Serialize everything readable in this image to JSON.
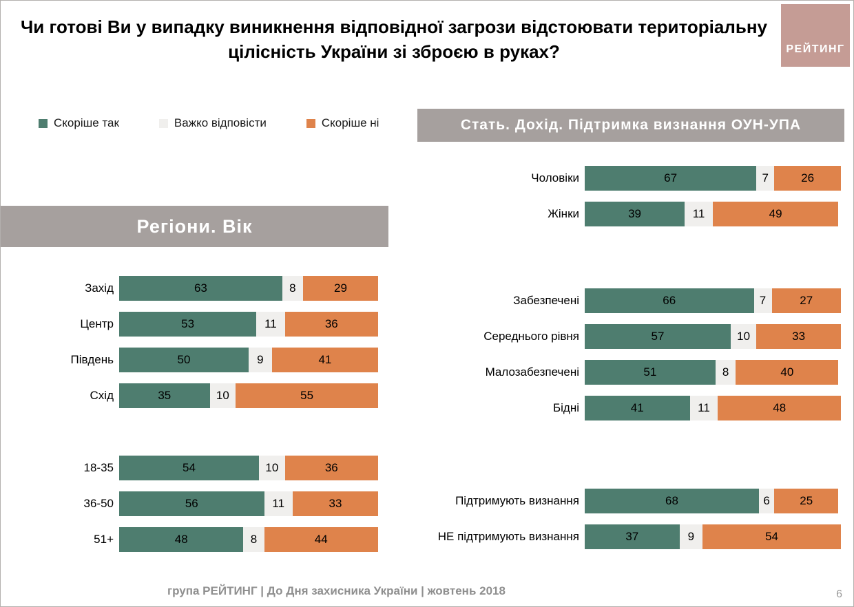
{
  "title": "Чи готові Ви у випадку виникнення відповідної загрози відстоювати територіальну цілісність України зі зброєю в руках?",
  "logo": {
    "text": "РЕЙТИНГ",
    "background": "#c59c95"
  },
  "colors": {
    "header_bar": "#a6a09e",
    "rather_yes": "#4e7d6f",
    "hard_to_answer": "#f0efed",
    "rather_no": "#df834b"
  },
  "legend": [
    {
      "key": "rather-yes",
      "label": "Скоріше так",
      "color": "#4e7d6f"
    },
    {
      "key": "hard-to-answer",
      "label": "Важко відповісти",
      "color": "#f0efed"
    },
    {
      "key": "rather-no",
      "label": "Скоріше ні",
      "color": "#df834b"
    }
  ],
  "footer": {
    "text": "група РЕЙТИНГ  |  До Дня захисника України |  жовтень  2018",
    "page": "6"
  },
  "chart_data": [
    {
      "type": "bar",
      "orientation": "horizontal",
      "stacked": true,
      "units": "%",
      "xlim": [
        0,
        100
      ],
      "title": "Регіони. Вік",
      "series_names": [
        "Скоріше так",
        "Важко відповісти",
        "Скоріше ні"
      ],
      "groups": [
        {
          "name": "regions",
          "rows": [
            {
              "label": "Захід",
              "values": [
                63,
                8,
                29
              ]
            },
            {
              "label": "Центр",
              "values": [
                53,
                11,
                36
              ]
            },
            {
              "label": "Південь",
              "values": [
                50,
                9,
                41
              ]
            },
            {
              "label": "Схід",
              "values": [
                35,
                10,
                55
              ]
            }
          ]
        },
        {
          "name": "age",
          "gap_before": 53,
          "rows": [
            {
              "label": "18-35",
              "values": [
                54,
                10,
                36
              ]
            },
            {
              "label": "36-50",
              "values": [
                56,
                11,
                33
              ]
            },
            {
              "label": "51+",
              "values": [
                48,
                8,
                44
              ]
            }
          ]
        }
      ]
    },
    {
      "type": "bar",
      "orientation": "horizontal",
      "stacked": true,
      "units": "%",
      "xlim": [
        0,
        100
      ],
      "title": "Стать. Дохід. Підтримка визнання ОУН-УПА",
      "series_names": [
        "Скоріше так",
        "Важко відповісти",
        "Скоріше ні"
      ],
      "groups": [
        {
          "name": "gender",
          "rows": [
            {
              "label": "Чоловіки",
              "values": [
                67,
                7,
                26
              ]
            },
            {
              "label": "Жінки",
              "values": [
                39,
                11,
                49
              ]
            }
          ]
        },
        {
          "name": "income",
          "gap_before": 74,
          "rows": [
            {
              "label": "Забезпечені",
              "values": [
                66,
                7,
                27
              ]
            },
            {
              "label": "Середнього рівня",
              "values": [
                57,
                10,
                33
              ]
            },
            {
              "label": "Малозабезпечені",
              "values": [
                51,
                8,
                40
              ]
            },
            {
              "label": "Бідні",
              "values": [
                41,
                11,
                48
              ]
            }
          ]
        },
        {
          "name": "oun-upa-recognition",
          "gap_before": 83,
          "rows": [
            {
              "label": "Підтримують визнання",
              "values": [
                68,
                6,
                25
              ]
            },
            {
              "label": "НЕ підтримують визнання",
              "values": [
                37,
                9,
                54
              ]
            }
          ]
        }
      ]
    }
  ]
}
